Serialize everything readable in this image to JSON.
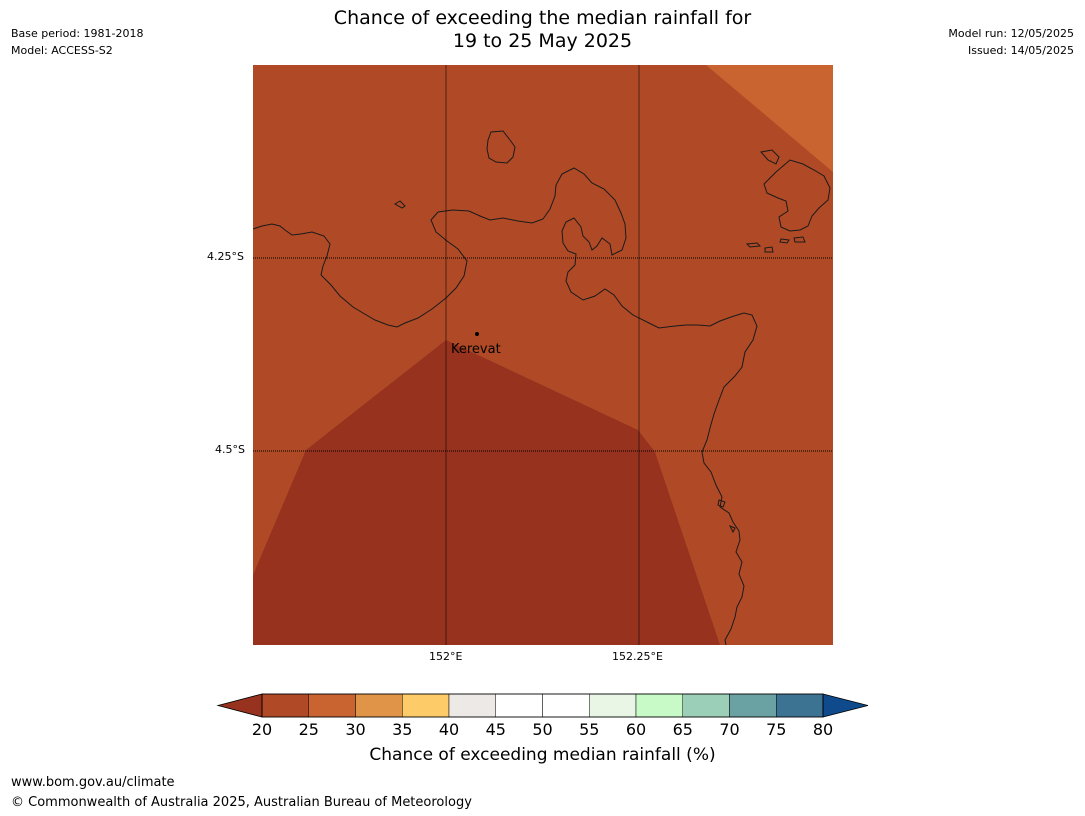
{
  "header": {
    "title_line1": "Chance of exceeding the median rainfall for",
    "title_line2": "19 to 25 May 2025",
    "base_period": "Base period: 1981-2018",
    "model": "Model: ACCESS-S2",
    "model_run": "Model run: 12/05/2025",
    "issued": "Issued: 14/05/2025"
  },
  "map": {
    "latitude_labels": [
      "4.25°S",
      "4.5°S"
    ],
    "longitude_labels": [
      "152°E",
      "152.25°E"
    ],
    "town": "Kerevat",
    "colors": {
      "band_20_25": "#b04a26",
      "band_below_20": "#97321f",
      "band_25_30": "#c9632f",
      "coastline": "#1a1a1a"
    }
  },
  "colorbar": {
    "ticks": [
      "20",
      "25",
      "30",
      "35",
      "40",
      "45",
      "50",
      "55",
      "60",
      "65",
      "70",
      "75",
      "80"
    ],
    "colors": [
      "#b04a26",
      "#c9632f",
      "#e09448",
      "#fdcb67",
      "#ece9e6",
      "#ffffff",
      "#ffffff",
      "#e9f6e6",
      "#c7fac7",
      "#9ccfb7",
      "#6aa1a3",
      "#3c7393"
    ],
    "under_color": "#97321f",
    "over_color": "#0f4b8c",
    "label": "Chance of exceeding median rainfall (%)"
  },
  "footer": {
    "url": "www.bom.gov.au/climate",
    "copyright": "© Commonwealth of Australia 2025, Australian Bureau of Meteorology"
  }
}
